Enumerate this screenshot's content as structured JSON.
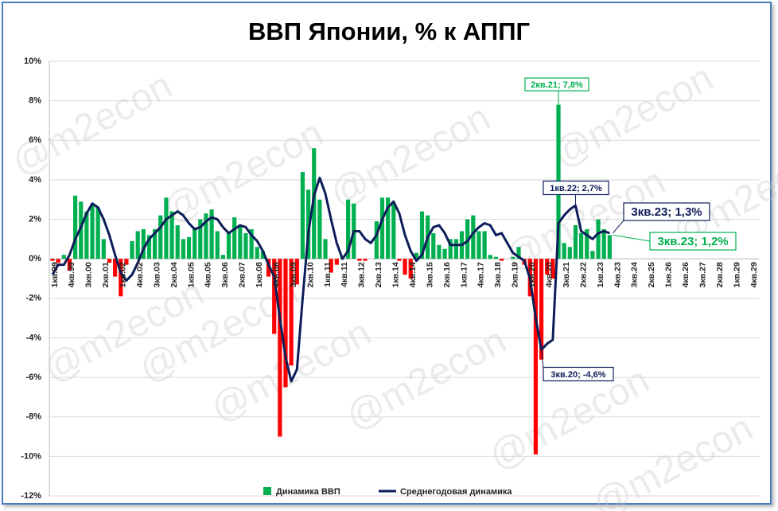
{
  "chart_data": {
    "type": "bar",
    "title": "ВВП Японии, % к АППГ",
    "watermark": "@m2econ",
    "categories": [
      "1кв.99",
      null,
      null,
      "4кв.99",
      null,
      null,
      "3кв.00",
      null,
      null,
      "2кв.01",
      null,
      null,
      "1кв.02",
      null,
      null,
      "4кв.02",
      null,
      null,
      "3кв.03",
      null,
      null,
      "2кв.04",
      null,
      null,
      "1кв.05",
      null,
      null,
      "4кв.05",
      null,
      null,
      "3кв.06",
      null,
      null,
      "2кв.07",
      null,
      null,
      "1кв.08",
      null,
      null,
      "4кв.08",
      null,
      null,
      "3кв.09",
      null,
      null,
      "2кв.10",
      null,
      null,
      "1кв.11",
      null,
      null,
      "4кв.11",
      null,
      null,
      "3кв.12",
      null,
      null,
      "2кв.13",
      null,
      null,
      "1кв.14",
      null,
      null,
      "4кв.14",
      null,
      null,
      "3кв.15",
      null,
      null,
      "2кв.16",
      null,
      null,
      "1кв.17",
      null,
      null,
      "4кв.17",
      null,
      null,
      "3кв.18",
      null,
      null,
      "2кв.19",
      null,
      null,
      "1кв.20",
      null,
      null,
      "4кв.20",
      null,
      null,
      "3кв.21",
      null,
      null,
      "2кв.22",
      null,
      null,
      "1кв.23",
      null,
      null,
      "4кв.23",
      null,
      null,
      "3кв.24",
      null,
      null,
      "2кв.25",
      null,
      null,
      "1кв.26",
      null,
      null,
      "4кв.26",
      null,
      null,
      "3кв.27",
      null,
      null,
      "2кв.28",
      null,
      null,
      "1кв.29",
      null,
      null,
      "4кв.29"
    ],
    "series": [
      {
        "name": "Динамика ВВП",
        "type": "bar",
        "color": "#00b050",
        "negative_color": "#ff0000",
        "values": [
          -0.1,
          -0.2,
          0.2,
          -0.6,
          3.2,
          2.9,
          2.4,
          2.8,
          2.6,
          1.0,
          -0.2,
          -0.9,
          -1.9,
          -0.3,
          0.9,
          1.4,
          1.5,
          1.2,
          1.5,
          2.2,
          3.1,
          2.4,
          1.7,
          1.0,
          1.1,
          1.6,
          2.0,
          2.3,
          2.5,
          1.4,
          0.2,
          1.3,
          2.1,
          1.7,
          1.3,
          1.5,
          0.6,
          0.4,
          -0.9,
          -3.8,
          -9.0,
          -6.5,
          -5.4,
          -1.3,
          4.4,
          3.5,
          5.6,
          3.0,
          1.0,
          -0.7,
          -0.3,
          0.1,
          3.0,
          2.8,
          -0.1,
          -0.1,
          0.0,
          1.9,
          3.1,
          3.1,
          2.8,
          -0.1,
          -0.8,
          -1.0,
          0.3,
          2.4,
          2.2,
          1.3,
          0.7,
          0.5,
          1.0,
          1.0,
          1.4,
          2.0,
          2.2,
          1.4,
          1.4,
          0.2,
          0.1,
          -0.1,
          0.0,
          0.1,
          0.6,
          -0.3,
          -1.9,
          -9.9,
          -5.1,
          -0.8,
          -1.0,
          7.8,
          0.8,
          0.6,
          1.7,
          1.3,
          1.5,
          0.4,
          2.0,
          1.5,
          1.2,
          null,
          null,
          null,
          null,
          null,
          null,
          null,
          null,
          null,
          null,
          null,
          null,
          null,
          null,
          null,
          null,
          null,
          null,
          null,
          null,
          null,
          null,
          null,
          null,
          null
        ]
      },
      {
        "name": "Среднегодовая динамика",
        "type": "line",
        "color": "#0d1d5a",
        "values": [
          -0.8,
          -0.3,
          -0.3,
          0.2,
          1.0,
          1.6,
          2.3,
          2.8,
          2.6,
          2.0,
          1.2,
          0.2,
          -0.7,
          -1.1,
          -0.8,
          -0.2,
          0.5,
          1.0,
          1.3,
          1.6,
          2.0,
          2.2,
          2.4,
          2.2,
          1.8,
          1.5,
          1.6,
          1.9,
          2.1,
          2.0,
          1.6,
          1.3,
          1.5,
          1.7,
          1.6,
          1.2,
          0.9,
          0.4,
          -0.3,
          -0.9,
          -3.0,
          -5.0,
          -6.2,
          -5.6,
          -2.0,
          1.3,
          3.2,
          4.1,
          3.3,
          2.0,
          0.8,
          0.0,
          0.4,
          1.4,
          1.4,
          1.0,
          0.8,
          1.2,
          2.0,
          2.6,
          2.9,
          2.3,
          1.2,
          0.4,
          -0.1,
          0.2,
          1.1,
          1.6,
          1.7,
          1.3,
          0.7,
          0.7,
          0.7,
          0.9,
          1.3,
          1.6,
          1.8,
          1.7,
          1.2,
          1.3,
          0.8,
          0.3,
          0.1,
          -0.1,
          -1.0,
          -3.0,
          -4.6,
          -4.3,
          -4.1,
          1.8,
          2.2,
          2.5,
          2.7,
          1.4,
          1.2,
          1.0,
          1.3,
          1.4,
          1.3,
          null,
          null,
          null,
          null,
          null,
          null,
          null,
          null,
          null,
          null,
          null,
          null,
          null,
          null,
          null,
          null,
          null,
          null,
          null,
          null,
          null,
          null,
          null,
          null,
          null
        ]
      }
    ],
    "annotations": [
      "2кв.21; 7,8%",
      "1кв.22; 2,7%",
      "3кв.23; 1,3%",
      "3кв.23; 1,2%",
      "3кв.20; -4,6%"
    ],
    "ylim": [
      -12,
      10
    ],
    "yticks": [
      {
        "value": -12,
        "label": "-12%"
      },
      {
        "value": -10,
        "label": "-10%"
      },
      {
        "value": -8,
        "label": "-8%"
      },
      {
        "value": -6,
        "label": "-6%"
      },
      {
        "value": -4,
        "label": "-4%"
      },
      {
        "value": -2,
        "label": "-2%"
      },
      {
        "value": 0,
        "label": "0%"
      },
      {
        "value": 2,
        "label": "2%"
      },
      {
        "value": 4,
        "label": "4%"
      },
      {
        "value": 6,
        "label": "6%"
      },
      {
        "value": 8,
        "label": "8%"
      },
      {
        "value": 10,
        "label": "10%"
      }
    ],
    "grid": true,
    "legend": "bottom"
  }
}
